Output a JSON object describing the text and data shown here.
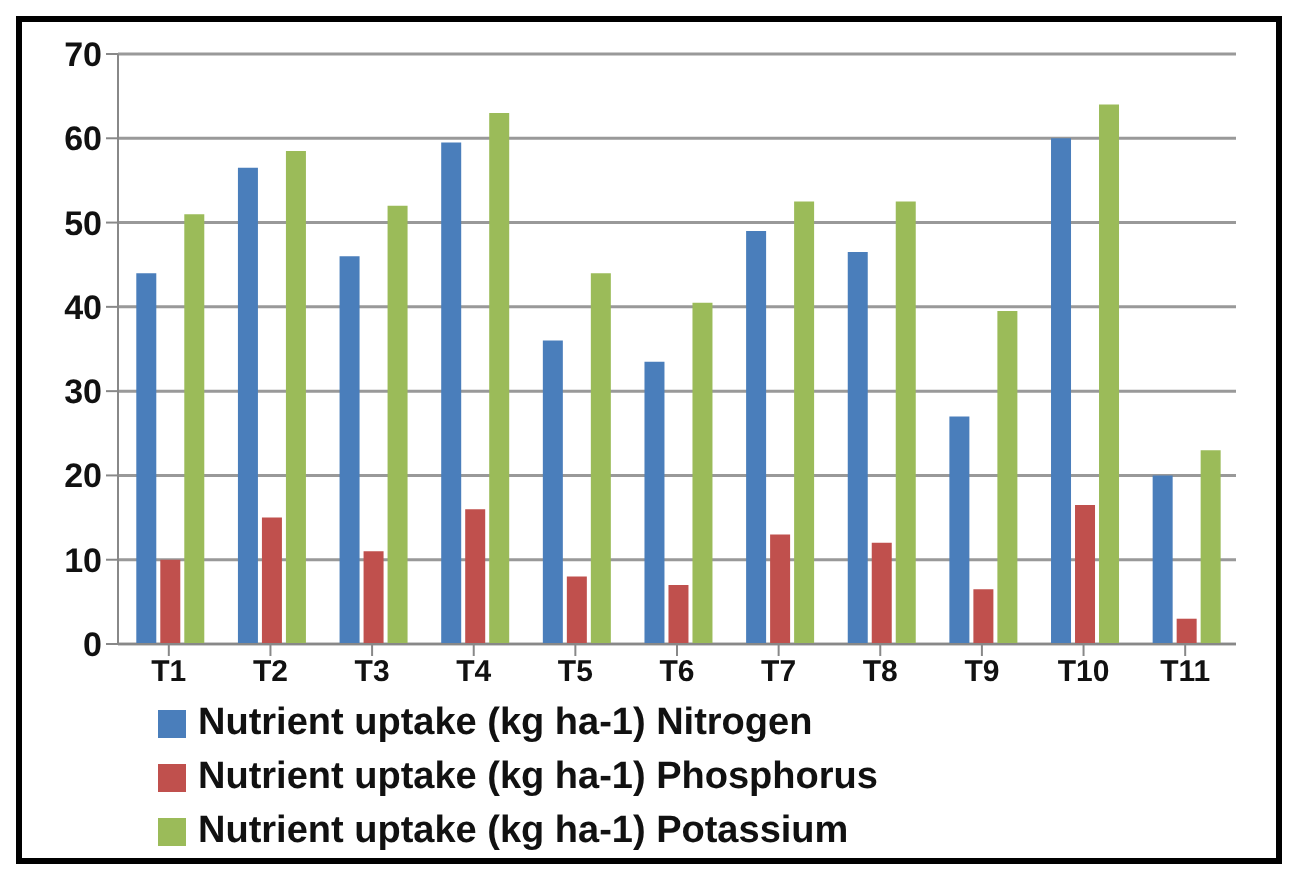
{
  "chart_data": {
    "type": "bar",
    "categories": [
      "T1",
      "T2",
      "T3",
      "T4",
      "T5",
      "T6",
      "T7",
      "T8",
      "T9",
      "T10",
      "T11"
    ],
    "series": [
      {
        "name": "Nutrient uptake  (kg ha-1) Nitrogen",
        "color": "#4a7ebb",
        "values": [
          44,
          56.5,
          46,
          59.5,
          36,
          33.5,
          49,
          46.5,
          27,
          60,
          20
        ]
      },
      {
        "name": "Nutrient uptake  (kg ha-1) Phosphorus",
        "color": "#c0504d",
        "values": [
          10,
          15,
          11,
          16,
          8,
          7,
          13,
          12,
          6.5,
          16.5,
          3
        ]
      },
      {
        "name": "Nutrient uptake  (kg ha-1) Potassium",
        "color": "#9bbb59",
        "values": [
          51,
          58.5,
          52,
          63,
          44,
          40.5,
          52.5,
          52.5,
          39.5,
          64,
          23
        ]
      }
    ],
    "ylim": [
      0,
      70
    ],
    "yticks": [
      0,
      10,
      20,
      30,
      40,
      50,
      60,
      70
    ],
    "grid": "y",
    "legend": "bottom"
  }
}
